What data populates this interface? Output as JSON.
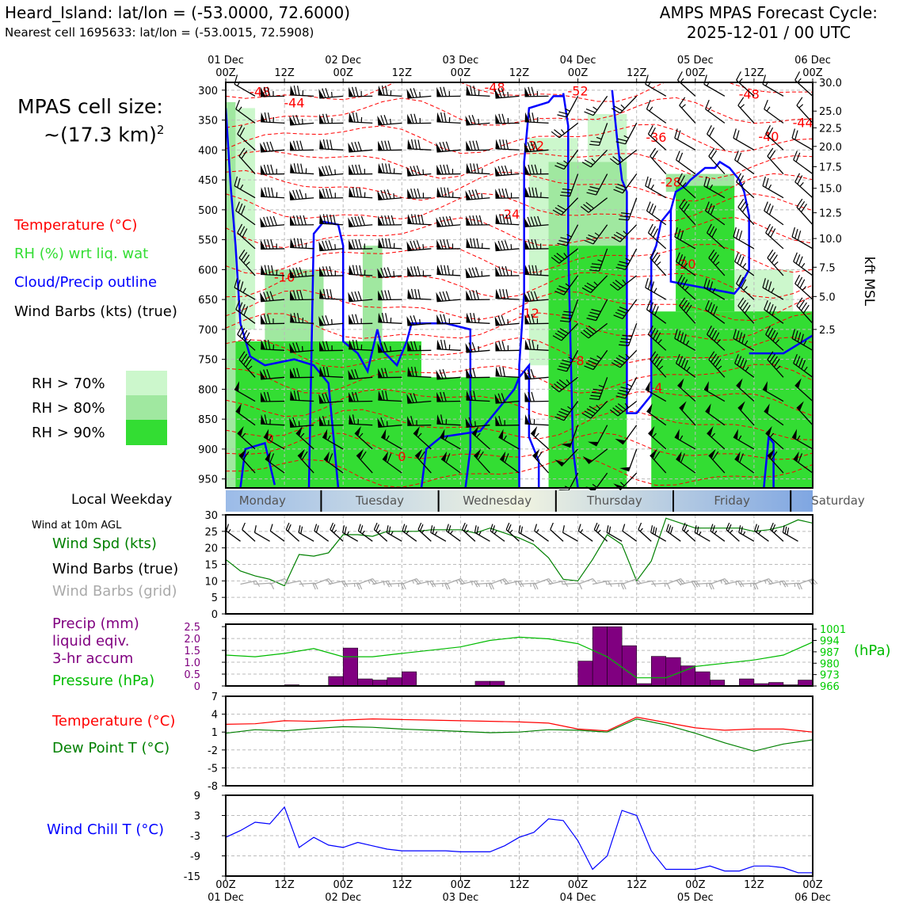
{
  "header": {
    "location_title": "Heard_Island: lat/lon = (-53.0000, 72.6000)",
    "nearest_cell": "Nearest cell 1695633: lat/lon = (-53.0015, 72.5908)",
    "cycle_title": "AMPS MPAS Forecast Cycle:",
    "cycle_time": "2025-12-01 / 00 UTC"
  },
  "left_panel": {
    "cell_size_label": "MPAS cell size:",
    "cell_size_value": "~(17.3 km)",
    "cell_size_exp": "2",
    "legend_temperature": "Temperature (°C)",
    "legend_rh": "RH (%) wrt liq. wat",
    "legend_cloud": "Cloud/Precip outline",
    "legend_wind": "Wind Barbs (kts) (true)",
    "rh_levels": [
      "RH > 70%",
      "RH > 80%",
      "RH > 90%"
    ],
    "local_weekday": "Local Weekday",
    "wind_10m": "Wind at 10m AGL",
    "wind_spd": "Wind Spd (kts)",
    "wind_barbs_true": "Wind Barbs (true)",
    "wind_barbs_grid": "Wind Barbs (grid)",
    "precip_1": "Precip (mm)",
    "precip_2": "liquid eqiv.",
    "precip_3": "3-hr accum",
    "pressure": "Pressure (hPa)",
    "temperature": "Temperature (°C)",
    "dewpoint": "Dew Point T (°C)",
    "wind_chill": "Wind Chill T (°C)"
  },
  "colors": {
    "rh70": "#ccf7cc",
    "rh80": "#a0e8a0",
    "rh90": "#33dd33",
    "temp": "#ff0000",
    "rh_text": "#33dd33",
    "cloud": "#0000ff",
    "wind": "#008000",
    "precip": "#800080",
    "pressure": "#00bb00",
    "dewpoint": "#008000",
    "chill": "#0000ff",
    "grid_barb": "#aaaaaa"
  },
  "chart_data": [
    {
      "type": "cross-section",
      "title": "Pressure-level time cross-section",
      "x_top_ticks": [
        "01 Dec",
        "00Z",
        "12Z",
        "02 Dec",
        "00Z",
        "12Z",
        "03 Dec",
        "00Z",
        "12Z",
        "04 Dec",
        "00Z",
        "12Z",
        "05 Dec",
        "00Z",
        "12Z",
        "06 Dec",
        "00Z"
      ],
      "top_tick_rows": [
        {
          "hour": 0,
          "day": "01 Dec",
          "z": "00Z"
        },
        {
          "hour": 12,
          "day": "",
          "z": "12Z"
        },
        {
          "hour": 24,
          "day": "02 Dec",
          "z": "00Z"
        },
        {
          "hour": 36,
          "day": "",
          "z": "12Z"
        },
        {
          "hour": 48,
          "day": "03 Dec",
          "z": "00Z"
        },
        {
          "hour": 60,
          "day": "",
          "z": "12Z"
        },
        {
          "hour": 72,
          "day": "04 Dec",
          "z": "00Z"
        },
        {
          "hour": 84,
          "day": "",
          "z": "12Z"
        },
        {
          "hour": 96,
          "day": "05 Dec",
          "z": "00Z"
        },
        {
          "hour": 108,
          "day": "",
          "z": "12Z"
        },
        {
          "hour": 120,
          "day": "06 Dec",
          "z": "00Z"
        }
      ],
      "pressure_ticks": [
        "300",
        "350",
        "400",
        "450",
        "500",
        "550",
        "600",
        "650",
        "700",
        "750",
        "800",
        "850",
        "900",
        "950"
      ],
      "pressure_values": [
        300,
        350,
        400,
        450,
        500,
        550,
        600,
        650,
        700,
        750,
        800,
        850,
        900,
        950
      ],
      "ylim": [
        965,
        287
      ],
      "kft_ticks": [
        {
          "p": 287,
          "label": "30.0"
        },
        {
          "p": 335,
          "label": "25.0"
        },
        {
          "p": 363,
          "label": "22.5"
        },
        {
          "p": 394,
          "label": "20.0"
        },
        {
          "p": 428,
          "label": "17.5"
        },
        {
          "p": 464,
          "label": "15.0"
        },
        {
          "p": 505,
          "label": "12.5"
        },
        {
          "p": 548,
          "label": "10.0"
        },
        {
          "p": 596,
          "label": "7.5"
        },
        {
          "p": 645,
          "label": "5.0"
        },
        {
          "p": 700,
          "label": "2.5"
        }
      ],
      "kft_axis_label": "kft MSL",
      "temperature_contour_labels": [
        {
          "t": 7,
          "p": 310,
          "label": "-48"
        },
        {
          "t": 14,
          "p": 329,
          "label": "-44"
        },
        {
          "t": 55,
          "p": 303,
          "label": "-48"
        },
        {
          "t": 72,
          "p": 309,
          "label": "-52"
        },
        {
          "t": 107,
          "p": 314,
          "label": "-48"
        },
        {
          "t": 118,
          "p": 362,
          "label": "-44"
        },
        {
          "t": 111,
          "p": 385,
          "label": "-40"
        },
        {
          "t": 88,
          "p": 386,
          "label": "-36"
        },
        {
          "t": 63,
          "p": 400,
          "label": "-32"
        },
        {
          "t": 91,
          "p": 461,
          "label": "-28"
        },
        {
          "t": 58,
          "p": 515,
          "label": "-24"
        },
        {
          "t": 94,
          "p": 598,
          "label": "-20"
        },
        {
          "t": 12,
          "p": 620,
          "label": "-16"
        },
        {
          "t": 62,
          "p": 680,
          "label": "-12"
        },
        {
          "t": 72,
          "p": 760,
          "label": "-8"
        },
        {
          "t": 88,
          "p": 805,
          "label": "-4"
        },
        {
          "t": 9,
          "p": 890,
          "label": "0"
        },
        {
          "t": 36,
          "p": 920,
          "label": "0"
        }
      ],
      "rh90_regions": [
        {
          "t0": 2,
          "t1": 40,
          "p0": 720,
          "p1": 965
        },
        {
          "t0": 40,
          "t1": 60,
          "p0": 780,
          "p1": 965
        },
        {
          "t0": 66,
          "t1": 82,
          "p0": 560,
          "p1": 965
        },
        {
          "t0": 87,
          "t1": 120,
          "p0": 670,
          "p1": 965
        },
        {
          "t0": 92,
          "t1": 104,
          "p0": 460,
          "p1": 670
        }
      ],
      "rh80_regions": [
        {
          "t0": 0,
          "t1": 2,
          "p0": 320,
          "p1": 965
        },
        {
          "t0": 8,
          "t1": 20,
          "p0": 600,
          "p1": 720
        },
        {
          "t0": 28,
          "t1": 32,
          "p0": 560,
          "p1": 720
        },
        {
          "t0": 66,
          "t1": 82,
          "p0": 420,
          "p1": 560
        },
        {
          "t0": 90,
          "t1": 104,
          "p0": 440,
          "p1": 470
        }
      ],
      "rh70_regions": [
        {
          "t0": 0,
          "t1": 6,
          "p0": 330,
          "p1": 700
        },
        {
          "t0": 14,
          "t1": 20,
          "p0": 640,
          "p1": 720
        },
        {
          "t0": 62,
          "t1": 72,
          "p0": 380,
          "p1": 760
        },
        {
          "t0": 74,
          "t1": 82,
          "p0": 340,
          "p1": 420
        },
        {
          "t0": 104,
          "t1": 116,
          "p0": 600,
          "p1": 700
        }
      ],
      "wind_levels": [
        310,
        355,
        400,
        440,
        480,
        525,
        565,
        610,
        650,
        690,
        735,
        780,
        820,
        860,
        900,
        940
      ],
      "wind_times": [
        6,
        12,
        18,
        24,
        30,
        36,
        42,
        48,
        54,
        60,
        66,
        72,
        78,
        84,
        90,
        96,
        102,
        108,
        114,
        120
      ]
    },
    {
      "type": "weekday-bar",
      "days": [
        "Monday",
        "Tuesday",
        "Wednesday",
        "Thursday",
        "Friday",
        "Saturday"
      ],
      "day_starts": [
        0,
        19.5,
        43.5,
        67.5,
        91.5,
        115.5
      ]
    },
    {
      "type": "line",
      "title": "Wind at 10m AGL",
      "ylabel": "Wind Spd (kts)",
      "ylim": [
        0,
        30
      ],
      "y_ticks": [
        "0",
        "5",
        "10",
        "15",
        "20",
        "25",
        "30"
      ],
      "x_hours": [
        0,
        3,
        6,
        9,
        12,
        15,
        18,
        21,
        24,
        27,
        30,
        33,
        36,
        39,
        42,
        45,
        48,
        51,
        54,
        57,
        60,
        63,
        66,
        69,
        72,
        75,
        78,
        81,
        84,
        87,
        90,
        93,
        96,
        99,
        102,
        105,
        108,
        111,
        114,
        117,
        120
      ],
      "wind_speed": [
        16.5,
        13,
        11.5,
        10.5,
        8.5,
        18,
        17.5,
        18.5,
        24,
        24,
        23.5,
        25,
        25,
        25,
        25.5,
        25.5,
        25.5,
        24.5,
        26,
        24.5,
        23,
        21,
        17,
        10.5,
        10,
        16.5,
        24,
        21,
        10,
        16,
        29,
        27.5,
        26,
        26,
        26,
        26,
        25,
        25.5,
        26.5,
        28.5,
        27.5
      ]
    },
    {
      "type": "bar",
      "title": "Precip (mm) liquid eqiv. 3-hr accum",
      "ylim": [
        0,
        2.5
      ],
      "y_ticks": [
        "0",
        "0.5",
        "1.0",
        "1.5",
        "2.0",
        "2.5"
      ],
      "bar_hours": [
        12,
        15,
        18,
        21,
        24,
        27,
        30,
        33,
        36,
        39,
        42,
        45,
        48,
        51,
        54,
        57,
        60,
        63,
        66,
        69,
        72,
        75,
        78,
        81,
        84,
        87,
        90,
        93,
        96,
        99,
        102,
        105,
        108,
        111,
        114,
        117
      ],
      "precip": [
        0.05,
        0,
        0,
        0.4,
        1.6,
        0.3,
        0.25,
        0.35,
        0.6,
        0,
        0,
        0,
        0,
        0.2,
        0.2,
        0,
        0,
        0,
        0,
        0,
        1.05,
        2.5,
        2.5,
        1.7,
        0.1,
        1.25,
        1.2,
        0.85,
        0.6,
        0.25,
        0,
        0.3,
        0.1,
        0.15,
        0.05,
        0.25
      ],
      "pressure_axis": {
        "ticks": [
          "1001",
          "994",
          "987",
          "980",
          "973",
          "966"
        ],
        "values": [
          1001,
          994,
          987,
          980,
          973,
          966
        ],
        "label": "(hPa)",
        "ylim": [
          966,
          1004
        ]
      },
      "pressure_x_hours": [
        0,
        6,
        12,
        18,
        24,
        30,
        36,
        42,
        48,
        54,
        60,
        66,
        72,
        78,
        84,
        90,
        96,
        102,
        108,
        114,
        120
      ],
      "pressure": [
        985,
        984,
        986,
        989,
        984,
        984,
        986,
        988,
        990,
        994,
        996,
        995,
        992,
        984,
        971,
        971,
        978,
        980,
        982,
        985,
        993
      ]
    },
    {
      "type": "line",
      "title": "Temperature / Dew Point",
      "ylim": [
        -8,
        7
      ],
      "y_ticks": [
        "7",
        "4",
        "1",
        "-2",
        "-5",
        "-8"
      ],
      "x_hours": [
        0,
        6,
        12,
        18,
        24,
        30,
        36,
        42,
        48,
        54,
        60,
        66,
        72,
        78,
        84,
        90,
        96,
        102,
        108,
        114,
        120
      ],
      "temperature": [
        2.3,
        2.4,
        2.9,
        2.8,
        3,
        3.2,
        3.1,
        3,
        2.9,
        2.8,
        2.7,
        2.5,
        1.5,
        1.2,
        3.5,
        2.6,
        1.7,
        1.3,
        1.5,
        1.5,
        1
      ],
      "dewpoint": [
        0.8,
        1.4,
        1.2,
        1.6,
        1.9,
        1.8,
        1.5,
        1.3,
        1.1,
        0.9,
        1,
        1.4,
        1.3,
        1,
        3.2,
        2.2,
        0.8,
        -0.8,
        -2.2,
        -1,
        -0.3
      ]
    },
    {
      "type": "line",
      "title": "Wind Chill T (°C)",
      "ylim": [
        -15,
        9
      ],
      "y_ticks": [
        "9",
        "3",
        "-3",
        "-9",
        "-15"
      ],
      "x_hours": [
        0,
        3,
        6,
        9,
        12,
        15,
        18,
        21,
        24,
        27,
        30,
        33,
        36,
        39,
        42,
        45,
        48,
        51,
        54,
        57,
        60,
        63,
        66,
        69,
        72,
        75,
        78,
        81,
        84,
        87,
        90,
        93,
        96,
        99,
        102,
        105,
        108,
        111,
        114,
        117,
        120
      ],
      "wind_chill": [
        -3.5,
        -1.5,
        1,
        0.5,
        5.5,
        -6.5,
        -3.5,
        -5.8,
        -6.5,
        -5,
        -6,
        -7,
        -7.5,
        -7.5,
        -7.5,
        -7.5,
        -7.8,
        -7.8,
        -7.8,
        -6,
        -3.5,
        -2,
        2,
        1.5,
        -4.5,
        -13,
        -9,
        4.5,
        3,
        -7.5,
        -13,
        -13,
        -13,
        -12,
        -13.5,
        -13.5,
        -12,
        -12,
        -12.5,
        -14,
        -14
      ],
      "x_tick_rows": [
        {
          "hour": 0,
          "z": "00Z",
          "day": "01 Dec"
        },
        {
          "hour": 12,
          "z": "12Z",
          "day": ""
        },
        {
          "hour": 24,
          "z": "00Z",
          "day": "02 Dec"
        },
        {
          "hour": 36,
          "z": "12Z",
          "day": ""
        },
        {
          "hour": 48,
          "z": "00Z",
          "day": "03 Dec"
        },
        {
          "hour": 60,
          "z": "12Z",
          "day": ""
        },
        {
          "hour": 72,
          "z": "00Z",
          "day": "04 Dec"
        },
        {
          "hour": 84,
          "z": "12Z",
          "day": ""
        },
        {
          "hour": 96,
          "z": "00Z",
          "day": "05 Dec"
        },
        {
          "hour": 108,
          "z": "12Z",
          "day": ""
        },
        {
          "hour": 120,
          "z": "00Z",
          "day": "06 Dec"
        }
      ]
    }
  ]
}
